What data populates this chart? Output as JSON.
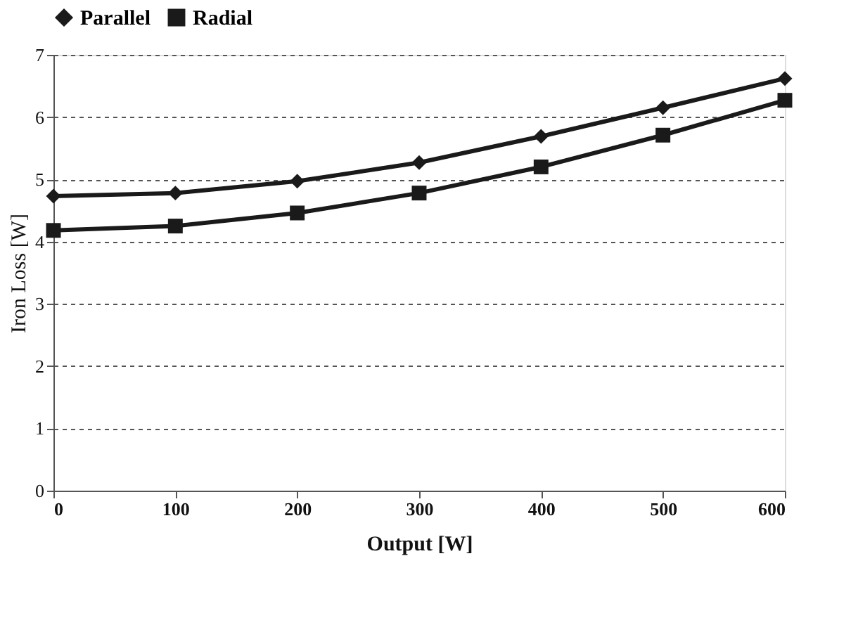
{
  "chart_data": {
    "type": "line",
    "xlabel": "Output [W]",
    "ylabel": "Iron Loss [W]",
    "x": [
      0,
      100,
      200,
      300,
      400,
      500,
      600
    ],
    "series": [
      {
        "name": "Parallel",
        "color": "#1a1a1a",
        "marker": "diamond",
        "values": [
          4.73,
          4.78,
          4.97,
          5.27,
          5.69,
          6.15,
          6.62
        ]
      },
      {
        "name": "Radial",
        "color": "#1a1a1a",
        "marker": "square",
        "values": [
          4.18,
          4.25,
          4.46,
          4.78,
          5.2,
          5.71,
          6.27
        ]
      }
    ],
    "xlim": [
      0,
      600
    ],
    "xticks": [
      0,
      100,
      200,
      300,
      400,
      500,
      600
    ],
    "ylim": [
      0,
      7
    ],
    "yticks": [
      0,
      1,
      2,
      3,
      4,
      5,
      6,
      7
    ],
    "grid": "y",
    "line_style": "solid",
    "legend": "top"
  }
}
